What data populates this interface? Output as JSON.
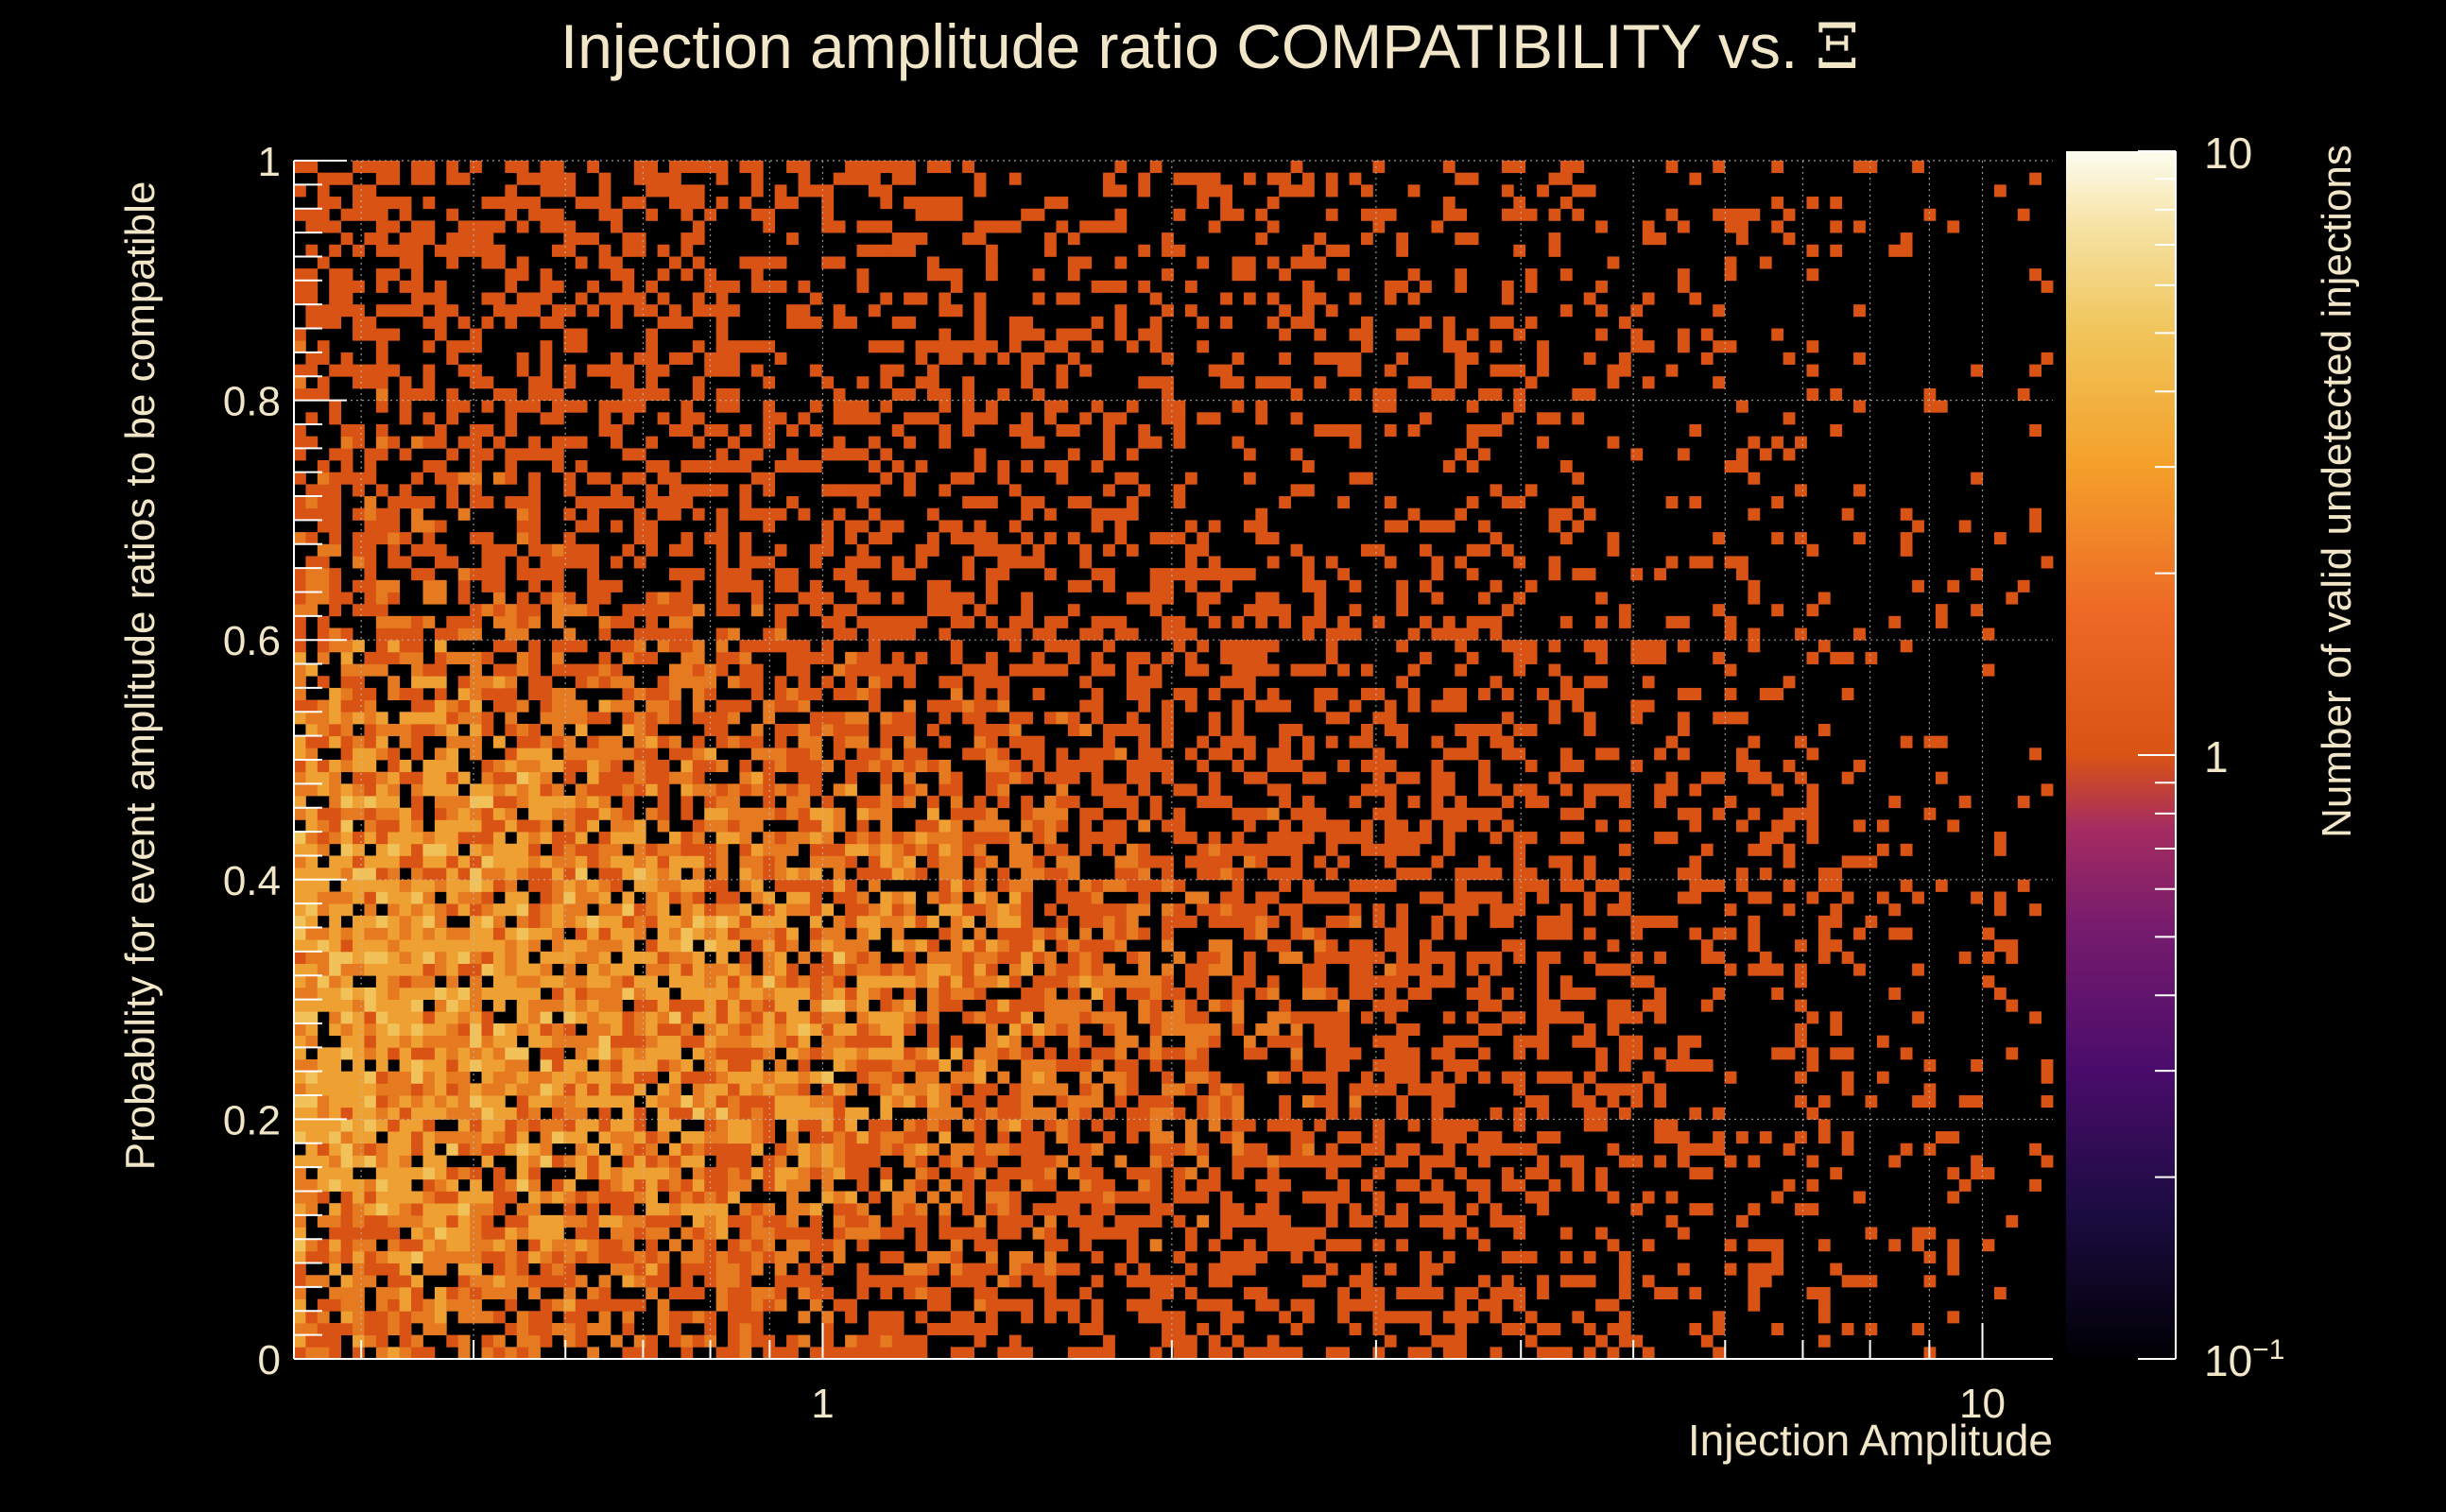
{
  "chart_data": {
    "type": "heatmap",
    "title": "Injection amplitude ratio COMPATIBILITY vs. ",
    "title_symbol": "Ξ",
    "xlabel": "Injection Amplitude",
    "ylabel": "Probability for event amplitude ratios to be compatible",
    "zlabel": "Number of valid undetected injections",
    "x_scale": "log",
    "x_range": [
      0.35,
      11.5
    ],
    "y_range": [
      0,
      1
    ],
    "z_scale": "log",
    "z_range": [
      0.1,
      10
    ],
    "x_ticks": [
      {
        "value": 1,
        "label": "1"
      },
      {
        "value": 10,
        "label": "10"
      }
    ],
    "y_ticks": [
      {
        "value": 0,
        "label": "0"
      },
      {
        "value": 0.2,
        "label": "0.2"
      },
      {
        "value": 0.4,
        "label": "0.4"
      },
      {
        "value": 0.6,
        "label": "0.6"
      },
      {
        "value": 0.8,
        "label": "0.8"
      },
      {
        "value": 1,
        "label": "1"
      }
    ],
    "z_ticks": [
      {
        "value": 10,
        "label": "10",
        "exp": ""
      },
      {
        "value": 1,
        "label": "1",
        "exp": ""
      },
      {
        "value": 0.1,
        "label": "10",
        "exp": "−1"
      }
    ],
    "bins": {
      "nx": 150,
      "ny": 100
    },
    "grid": true,
    "colormap": [
      "#000004",
      "#1b0c41",
      "#4a0c6b",
      "#781c6d",
      "#a52c60",
      "#cf4446",
      "#d95314",
      "#ed6925",
      "#fb9b06",
      "#f7d13d",
      "#fcffa4",
      "#fcfdf0"
    ],
    "bin_counts_summary": "Counts range 1 to about 5 per bin; density highest at low amplitude (0.35–2) and probability 0.05–0.55, sparse above amplitude 4."
  },
  "style": {
    "background": "#000000",
    "text_color": "#f2e6c9",
    "axis_color": "#ffffff"
  }
}
